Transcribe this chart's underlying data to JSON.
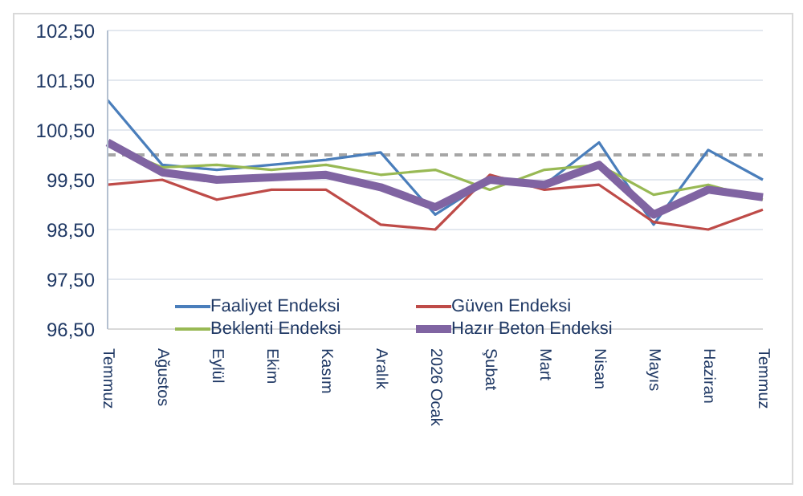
{
  "chart_data": {
    "type": "line",
    "categories": [
      "Temmuz",
      "Ağustos",
      "Eylül",
      "Ekim",
      "Kasım",
      "Aralık",
      "2026 Ocak",
      "Şubat",
      "Mart",
      "Nisan",
      "Mayıs",
      "Haziran",
      "Temmuz"
    ],
    "series": [
      {
        "name": "Faaliyet Endeksi",
        "color": "#4a7ebb",
        "values": [
          101.1,
          99.8,
          99.7,
          99.8,
          99.9,
          100.05,
          98.8,
          99.5,
          99.4,
          100.25,
          98.6,
          100.1,
          99.5
        ]
      },
      {
        "name": "Güven Endeksi",
        "color": "#be4b48",
        "values": [
          99.4,
          99.5,
          99.1,
          99.3,
          99.3,
          98.6,
          98.5,
          99.6,
          99.3,
          99.4,
          98.65,
          98.5,
          98.9
        ]
      },
      {
        "name": "Beklenti Endeksi",
        "color": "#98b954",
        "values": [
          100.2,
          99.75,
          99.8,
          99.7,
          99.8,
          99.6,
          99.7,
          99.3,
          99.7,
          99.8,
          99.2,
          99.4,
          99.1
        ]
      },
      {
        "name": "Hazır Beton Endeksi",
        "color": "#8064a2",
        "values": [
          100.25,
          99.65,
          99.5,
          99.55,
          99.6,
          99.35,
          98.95,
          99.5,
          99.4,
          99.8,
          98.8,
          99.3,
          99.15
        ]
      }
    ],
    "ylim": [
      96.5,
      102.5
    ],
    "yticks": [
      {
        "value": 96.5,
        "label": "96,50"
      },
      {
        "value": 97.5,
        "label": "97,50"
      },
      {
        "value": 98.5,
        "label": "98,50"
      },
      {
        "value": 99.5,
        "label": "99,50"
      },
      {
        "value": 100.5,
        "label": "100,50"
      },
      {
        "value": 101.5,
        "label": "101,50"
      },
      {
        "value": 102.5,
        "label": "102,50"
      }
    ],
    "ref_lines": [
      {
        "axis": "y",
        "value": 100,
        "color": "#a6a6a6",
        "line_style": "dashed"
      }
    ],
    "grid": "y",
    "legend": "bottom",
    "marker": "none",
    "line_style": "solid"
  }
}
